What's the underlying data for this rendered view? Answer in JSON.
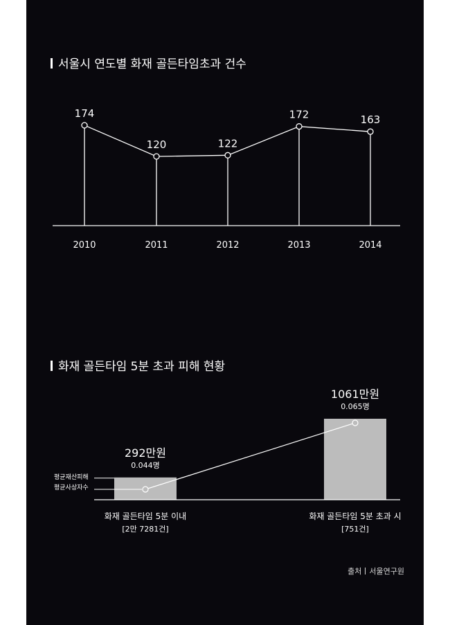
{
  "colors": {
    "background": "#09080d",
    "foreground": "#ffffff",
    "bar": "#bcbcbc"
  },
  "source": {
    "label": "출처",
    "value": "서울연구원"
  },
  "chart_data": [
    {
      "type": "line",
      "title": "서울시 연도별 화재 골든타임초과 건수",
      "x": [
        "2010",
        "2011",
        "2012",
        "2013",
        "2014"
      ],
      "values": [
        174,
        120,
        122,
        172,
        163
      ],
      "data_labels": [
        "174",
        "120",
        "122",
        "172",
        "163"
      ],
      "ylim": [
        0,
        200
      ],
      "grid": false,
      "style": "drop lines from each point to the baseline"
    },
    {
      "type": "bar",
      "title": "화재 골든타임 5분 초과 피해 현황",
      "categories": [
        "화재 골든타임 5분 이내",
        "화재 골든타임 5분 초과 시"
      ],
      "category_counts": [
        "[2만 7281건]",
        "[751건]"
      ],
      "series": [
        {
          "name": "평균재산피해",
          "unit": "만원",
          "values": [
            292,
            1061
          ],
          "labels": [
            "292만원",
            "1061만원"
          ],
          "type": "bar"
        },
        {
          "name": "평균사상자수",
          "unit": "명",
          "values": [
            0.044,
            0.065
          ],
          "labels": [
            "0.044명",
            "0.065명"
          ],
          "type": "line"
        }
      ],
      "legend": "left, leader lines to first bar",
      "grid": false
    }
  ]
}
